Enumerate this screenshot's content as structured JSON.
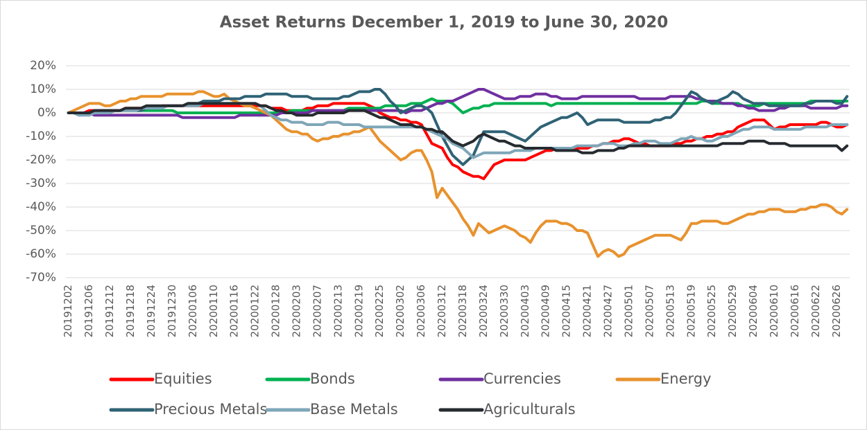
{
  "chart_data": {
    "type": "line",
    "title": "Asset Returns December 1, 2019 to June 30, 2020",
    "categories": [
      "20191202",
      null,
      null,
      null,
      "20191206",
      null,
      null,
      null,
      "20191212",
      null,
      null,
      null,
      "20191218",
      null,
      null,
      null,
      "20191224",
      null,
      null,
      null,
      "20191230",
      null,
      null,
      null,
      "20200106",
      null,
      null,
      null,
      "20200110",
      null,
      null,
      null,
      "20200116",
      null,
      null,
      null,
      "20200122",
      null,
      null,
      null,
      "20200128",
      null,
      null,
      null,
      "20200203",
      null,
      null,
      null,
      "20200207",
      null,
      null,
      null,
      "20200213",
      null,
      null,
      null,
      "20200219",
      null,
      null,
      null,
      "20200225",
      null,
      null,
      null,
      "20200302",
      null,
      null,
      null,
      "20200306",
      null,
      null,
      null,
      "20200312",
      null,
      null,
      null,
      "20200318",
      null,
      null,
      null,
      "20200324",
      null,
      null,
      null,
      "20200330",
      null,
      null,
      null,
      "20200403",
      null,
      null,
      null,
      "20200409",
      null,
      null,
      null,
      "20200415",
      null,
      null,
      null,
      "20200421",
      null,
      null,
      null,
      "20200427",
      null,
      null,
      null,
      "20200501",
      null,
      null,
      null,
      "20200507",
      null,
      null,
      null,
      "20200513",
      null,
      null,
      null,
      "20200519",
      null,
      null,
      null,
      "20200525",
      null,
      null,
      null,
      "20200529",
      null,
      null,
      null,
      "20200604",
      null,
      null,
      null,
      "20200610",
      null,
      null,
      null,
      "20200616",
      null,
      null,
      null,
      "20200622",
      null,
      null,
      null,
      "20200626",
      null,
      null
    ],
    "ylim": [
      -70,
      20
    ],
    "yticks": [
      {
        "value": -70,
        "label": "-70%"
      },
      {
        "value": -60,
        "label": "-60%"
      },
      {
        "value": -50,
        "label": "-50%"
      },
      {
        "value": -40,
        "label": "-40%"
      },
      {
        "value": -30,
        "label": "-30%"
      },
      {
        "value": -20,
        "label": "-20%"
      },
      {
        "value": -10,
        "label": "-10%"
      },
      {
        "value": 0,
        "label": "0%"
      },
      {
        "value": 10,
        "label": "10%"
      },
      {
        "value": 20,
        "label": "20%"
      }
    ],
    "grid": true,
    "legend": "bottom",
    "series": [
      {
        "name": "Equities",
        "color": "#ff0000",
        "values": [
          0,
          0,
          0,
          0,
          1,
          1,
          1,
          1,
          1,
          1,
          1,
          2,
          2,
          2,
          2,
          2,
          2,
          2,
          3,
          3,
          3,
          3,
          3,
          3,
          3,
          3,
          3,
          3,
          3,
          3,
          3,
          3,
          3,
          3,
          3,
          3,
          3,
          3,
          3,
          2,
          2,
          2,
          1,
          1,
          1,
          1,
          2,
          2,
          3,
          3,
          3,
          4,
          4,
          4,
          4,
          4,
          4,
          4,
          3,
          2,
          0,
          -1,
          -2,
          -2,
          -3,
          -3,
          -4,
          -4,
          -5,
          -9,
          -13,
          -14,
          -15,
          -19,
          -22,
          -23,
          -25,
          -26,
          -27,
          -27,
          -28,
          -25,
          -22,
          -21,
          -20,
          -20,
          -20,
          -20,
          -20,
          -19,
          -18,
          -17,
          -16,
          -16,
          -15,
          -15,
          -15,
          -15,
          -15,
          -15,
          -15,
          -14,
          -14,
          -13,
          -13,
          -12,
          -12,
          -11,
          -11,
          -12,
          -13,
          -13,
          -14,
          -14,
          -14,
          -14,
          -14,
          -13,
          -13,
          -12,
          -12,
          -11,
          -11,
          -10,
          -10,
          -9,
          -9,
          -8,
          -8,
          -6,
          -5,
          -4,
          -3,
          -3,
          -3,
          -5,
          -7,
          -6,
          -6,
          -5,
          -5,
          -5,
          -5,
          -5,
          -5,
          -4,
          -4,
          -5,
          -6,
          -6,
          -5
        ]
      },
      {
        "name": "Bonds",
        "color": "#00b050",
        "values": [
          0,
          0,
          0,
          0,
          0,
          0,
          1,
          1,
          1,
          1,
          1,
          1,
          1,
          1,
          1,
          1,
          1,
          1,
          1,
          1,
          1,
          0,
          0,
          0,
          0,
          0,
          0,
          0,
          0,
          0,
          0,
          0,
          0,
          0,
          0,
          0,
          0,
          0,
          0,
          0,
          0,
          0,
          0,
          1,
          1,
          1,
          1,
          1,
          1,
          1,
          1,
          1,
          1,
          1,
          2,
          2,
          2,
          2,
          2,
          2,
          2,
          3,
          3,
          3,
          3,
          3,
          4,
          4,
          4,
          5,
          6,
          5,
          5,
          5,
          4,
          2,
          0,
          1,
          2,
          2,
          3,
          3,
          4,
          4,
          4,
          4,
          4,
          4,
          4,
          4,
          4,
          4,
          4,
          3,
          4,
          4,
          4,
          4,
          4,
          4,
          4,
          4,
          4,
          4,
          4,
          4,
          4,
          4,
          4,
          4,
          4,
          4,
          4,
          4,
          4,
          4,
          4,
          4,
          4,
          4,
          4,
          4,
          5,
          5,
          4,
          4,
          4,
          4,
          4,
          4,
          3,
          3,
          3,
          3,
          4,
          4,
          4,
          4,
          4,
          4,
          4,
          4,
          4,
          5,
          5,
          5,
          5,
          5,
          5,
          5,
          5
        ]
      },
      {
        "name": "Currencies",
        "color": "#7030a0",
        "values": [
          0,
          0,
          0,
          0,
          0,
          -1,
          -1,
          -1,
          -1,
          -1,
          -1,
          -1,
          -1,
          -1,
          -1,
          -1,
          -1,
          -1,
          -1,
          -1,
          -1,
          -1,
          -2,
          -2,
          -2,
          -2,
          -2,
          -2,
          -2,
          -2,
          -2,
          -2,
          -2,
          -1,
          -1,
          -1,
          -1,
          -1,
          -1,
          -1,
          -1,
          0,
          0,
          0,
          0,
          0,
          0,
          1,
          1,
          1,
          1,
          1,
          1,
          1,
          1,
          1,
          1,
          1,
          1,
          1,
          1,
          1,
          1,
          1,
          1,
          0,
          1,
          1,
          1,
          2,
          3,
          4,
          4,
          5,
          5,
          6,
          7,
          8,
          9,
          10,
          10,
          9,
          8,
          7,
          6,
          6,
          6,
          7,
          7,
          7,
          8,
          8,
          8,
          7,
          7,
          6,
          6,
          6,
          6,
          7,
          7,
          7,
          7,
          7,
          7,
          7,
          7,
          7,
          7,
          7,
          6,
          6,
          6,
          6,
          6,
          6,
          7,
          7,
          7,
          7,
          7,
          6,
          6,
          5,
          5,
          5,
          4,
          4,
          4,
          3,
          3,
          2,
          2,
          1,
          1,
          1,
          1,
          2,
          2,
          3,
          3,
          3,
          3,
          2,
          2,
          2,
          2,
          2,
          2,
          3,
          3
        ]
      },
      {
        "name": "Energy",
        "color": "#e8922e",
        "values": [
          0,
          1,
          2,
          3,
          4,
          4,
          4,
          3,
          3,
          4,
          5,
          5,
          6,
          6,
          7,
          7,
          7,
          7,
          7,
          8,
          8,
          8,
          8,
          8,
          8,
          9,
          9,
          8,
          7,
          7,
          8,
          6,
          5,
          4,
          3,
          3,
          2,
          1,
          0,
          -1,
          -3,
          -5,
          -7,
          -8,
          -8,
          -9,
          -9,
          -11,
          -12,
          -11,
          -11,
          -10,
          -10,
          -9,
          -9,
          -8,
          -8,
          -7,
          -6,
          -9,
          -12,
          -14,
          -16,
          -18,
          -20,
          -19,
          -17,
          -16,
          -16,
          -20,
          -25,
          -36,
          -32,
          -35,
          -38,
          -41,
          -45,
          -48,
          -52,
          -47,
          -49,
          -51,
          -50,
          -49,
          -48,
          -49,
          -50,
          -52,
          -53,
          -55,
          -51,
          -48,
          -46,
          -46,
          -46,
          -47,
          -47,
          -48,
          -50,
          -50,
          -51,
          -56,
          -61,
          -59,
          -58,
          -59,
          -61,
          -60,
          -57,
          -56,
          -55,
          -54,
          -53,
          -52,
          -52,
          -52,
          -52,
          -53,
          -54,
          -51,
          -47,
          -47,
          -46,
          -46,
          -46,
          -46,
          -47,
          -47,
          -46,
          -45,
          -44,
          -43,
          -43,
          -42,
          -42,
          -41,
          -41,
          -41,
          -42,
          -42,
          -42,
          -41,
          -41,
          -40,
          -40,
          -39,
          -39,
          -40,
          -42,
          -43,
          -41
        ]
      },
      {
        "name": "Precious Metals",
        "color": "#2f6275",
        "values": [
          0,
          0,
          0,
          0,
          0,
          0,
          1,
          1,
          1,
          1,
          1,
          1,
          1,
          1,
          1,
          2,
          2,
          2,
          2,
          3,
          3,
          3,
          3,
          4,
          4,
          4,
          5,
          5,
          5,
          5,
          6,
          6,
          6,
          6,
          7,
          7,
          7,
          7,
          8,
          8,
          8,
          8,
          8,
          7,
          7,
          7,
          7,
          6,
          6,
          6,
          6,
          6,
          6,
          7,
          7,
          8,
          9,
          9,
          9,
          10,
          10,
          8,
          5,
          3,
          0,
          1,
          2,
          3,
          3,
          2,
          0,
          -5,
          -10,
          -14,
          -18,
          -20,
          -22,
          -20,
          -18,
          -13,
          -8,
          -8,
          -8,
          -8,
          -8,
          -9,
          -10,
          -11,
          -12,
          -10,
          -8,
          -6,
          -5,
          -4,
          -3,
          -2,
          -2,
          -1,
          0,
          -2,
          -5,
          -4,
          -3,
          -3,
          -3,
          -3,
          -3,
          -4,
          -4,
          -4,
          -4,
          -4,
          -4,
          -3,
          -3,
          -2,
          -2,
          0,
          3,
          6,
          9,
          8,
          6,
          5,
          4,
          5,
          6,
          7,
          9,
          8,
          6,
          5,
          4,
          4,
          4,
          3,
          3,
          3,
          3,
          3,
          3,
          3,
          4,
          4,
          5,
          5,
          5,
          5,
          4,
          4,
          7
        ]
      },
      {
        "name": "Base Metals",
        "color": "#7ea6b8",
        "values": [
          0,
          0,
          -1,
          -1,
          -1,
          0,
          0,
          0,
          0,
          1,
          1,
          1,
          1,
          1,
          2,
          2,
          2,
          2,
          2,
          3,
          3,
          3,
          3,
          3,
          3,
          3,
          4,
          4,
          4,
          4,
          4,
          4,
          4,
          4,
          4,
          4,
          4,
          3,
          1,
          -1,
          -2,
          -3,
          -3,
          -4,
          -4,
          -4,
          -5,
          -5,
          -5,
          -5,
          -4,
          -4,
          -4,
          -5,
          -5,
          -5,
          -5,
          -6,
          -6,
          -6,
          -6,
          -6,
          -6,
          -6,
          -6,
          -6,
          -6,
          -6,
          -6,
          -7,
          -8,
          -9,
          -10,
          -11,
          -13,
          -14,
          -15,
          -17,
          -19,
          -18,
          -17,
          -17,
          -17,
          -17,
          -17,
          -17,
          -16,
          -16,
          -16,
          -16,
          -15,
          -15,
          -15,
          -15,
          -15,
          -15,
          -15,
          -15,
          -14,
          -14,
          -14,
          -14,
          -14,
          -13,
          -13,
          -13,
          -14,
          -14,
          -14,
          -13,
          -13,
          -12,
          -12,
          -12,
          -13,
          -13,
          -13,
          -12,
          -11,
          -11,
          -10,
          -11,
          -11,
          -12,
          -12,
          -11,
          -10,
          -10,
          -9,
          -8,
          -7,
          -7,
          -6,
          -6,
          -6,
          -6,
          -7,
          -7,
          -7,
          -7,
          -7,
          -7,
          -6,
          -6,
          -6,
          -6,
          -6,
          -5,
          -5,
          -5,
          -5
        ]
      },
      {
        "name": "Agriculturals",
        "color": "#262b30",
        "values": [
          0,
          0,
          0,
          0,
          0,
          1,
          1,
          1,
          1,
          1,
          1,
          2,
          2,
          2,
          2,
          3,
          3,
          3,
          3,
          3,
          3,
          3,
          3,
          4,
          4,
          4,
          4,
          4,
          4,
          4,
          4,
          4,
          4,
          4,
          4,
          4,
          4,
          3,
          3,
          2,
          1,
          1,
          0,
          0,
          -1,
          -1,
          -1,
          -1,
          0,
          0,
          0,
          0,
          0,
          0,
          1,
          1,
          1,
          1,
          0,
          -1,
          -2,
          -2,
          -3,
          -4,
          -5,
          -5,
          -5,
          -6,
          -6,
          -7,
          -7,
          -8,
          -8,
          -10,
          -12,
          -13,
          -14,
          -13,
          -12,
          -10,
          -9,
          -10,
          -11,
          -12,
          -12,
          -13,
          -14,
          -14,
          -15,
          -15,
          -15,
          -15,
          -15,
          -15,
          -16,
          -16,
          -16,
          -16,
          -16,
          -17,
          -17,
          -17,
          -16,
          -16,
          -16,
          -16,
          -15,
          -15,
          -14,
          -14,
          -14,
          -14,
          -14,
          -14,
          -14,
          -14,
          -14,
          -14,
          -14,
          -14,
          -14,
          -14,
          -14,
          -14,
          -14,
          -14,
          -13,
          -13,
          -13,
          -13,
          -13,
          -12,
          -12,
          -12,
          -12,
          -13,
          -13,
          -13,
          -13,
          -14,
          -14,
          -14,
          -14,
          -14,
          -14,
          -14,
          -14,
          -14,
          -14,
          -16,
          -14
        ]
      }
    ]
  }
}
